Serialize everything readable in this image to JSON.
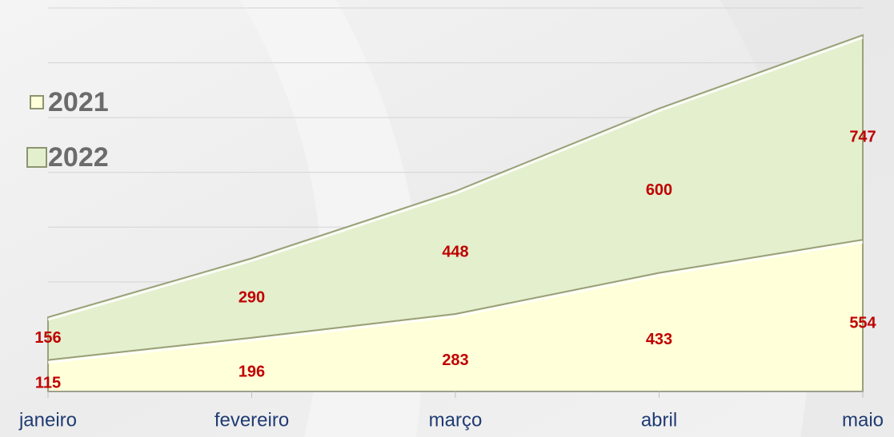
{
  "chart_data": {
    "type": "area",
    "stacked": true,
    "categories": [
      "janeiro",
      "fevereiro",
      "março",
      "abril",
      "maio"
    ],
    "series": [
      {
        "name": "2021",
        "color": "#ffffd9",
        "values": [
          115,
          196,
          283,
          433,
          554
        ]
      },
      {
        "name": "2022",
        "color": "#e3efcd",
        "values": [
          156,
          290,
          448,
          600,
          747
        ]
      }
    ],
    "ylim": [
      0,
      1400
    ],
    "yticks": [
      0,
      200,
      400,
      600,
      800,
      1000,
      1200,
      1400
    ],
    "grid": true
  }
}
